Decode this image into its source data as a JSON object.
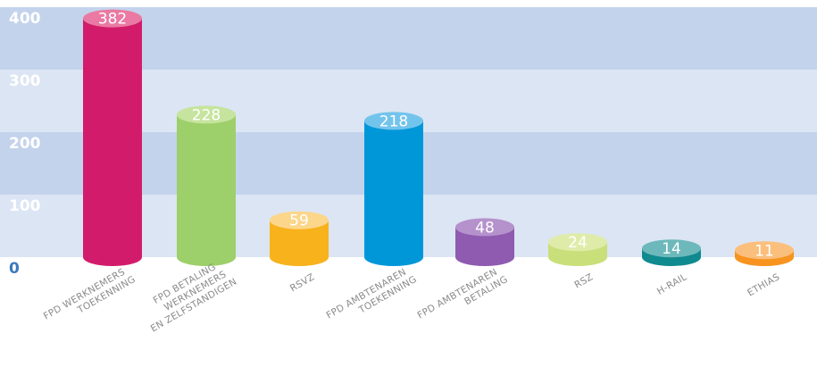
{
  "chart_data": {
    "type": "bar",
    "categories": [
      [
        "FPD WERKNEMERS",
        "TOEKENNING"
      ],
      [
        "FPD BETALING",
        "WERKNEMERS",
        "EN ZELFSTANDIGEN"
      ],
      [
        "RSVZ"
      ],
      [
        "FPD AMBTENAREN",
        "TOEKENNING"
      ],
      [
        "FPD AMBTENAREN",
        "BETALING"
      ],
      [
        "RSZ"
      ],
      [
        "H-RAIL"
      ],
      [
        "ETHIAS"
      ]
    ],
    "values": [
      382,
      228,
      59,
      218,
      48,
      24,
      14,
      11
    ],
    "colors": [
      "#d21c6b",
      "#9dcf6a",
      "#f7b21c",
      "#0097d9",
      "#8e5bb0",
      "#c9df7a",
      "#0f8a8f",
      "#f7931e"
    ],
    "top_colors": [
      "#ea7aa3",
      "#c6e49e",
      "#fcd68a",
      "#73c4ec",
      "#b592cc",
      "#dfeca9",
      "#6db8bb",
      "#fbbf7d"
    ],
    "ylim": [
      0,
      400
    ],
    "yticks": [
      0,
      100,
      200,
      300,
      400
    ],
    "grid": true
  }
}
